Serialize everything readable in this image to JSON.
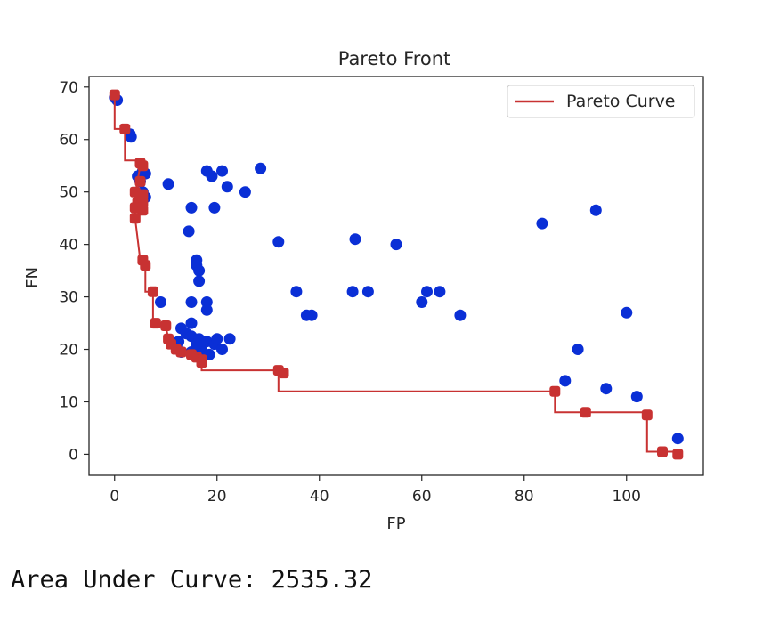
{
  "output": {
    "auc_text": "Area Under Curve: 2535.32"
  },
  "colors": {
    "scatter": "#0a2fd6",
    "pareto": "#c83232",
    "axes": "#262626"
  },
  "chart_data": {
    "type": "scatter",
    "title": "Pareto Front",
    "xlabel": "FP",
    "ylabel": "FN",
    "xlim": [
      -5,
      115
    ],
    "ylim": [
      -4,
      72
    ],
    "xticks": [
      0,
      20,
      40,
      60,
      80,
      100
    ],
    "yticks": [
      0,
      10,
      20,
      30,
      40,
      50,
      60,
      70
    ],
    "grid": false,
    "legend": {
      "placement": "top-right",
      "entries": [
        {
          "label": "Pareto Curve"
        }
      ]
    },
    "series": [
      {
        "kind": "scatter",
        "color": "#0a2fd6",
        "points": [
          [
            0,
            68
          ],
          [
            0.5,
            67.5
          ],
          [
            3,
            61
          ],
          [
            3.2,
            60.5
          ],
          [
            4.5,
            53
          ],
          [
            5,
            52
          ],
          [
            5.5,
            54
          ],
          [
            6,
            53.5
          ],
          [
            6,
            49
          ],
          [
            5.5,
            50
          ],
          [
            10.5,
            51.5
          ],
          [
            15,
            47
          ],
          [
            14.5,
            42.5
          ],
          [
            16,
            37
          ],
          [
            16,
            36
          ],
          [
            16.5,
            35
          ],
          [
            16.5,
            33
          ],
          [
            15,
            29
          ],
          [
            18,
            29
          ],
          [
            18,
            27.5
          ],
          [
            15,
            25
          ],
          [
            19.5,
            47
          ],
          [
            18,
            54
          ],
          [
            19,
            53
          ],
          [
            21,
            54
          ],
          [
            22,
            51
          ],
          [
            25.5,
            50
          ],
          [
            28.5,
            54.5
          ],
          [
            32,
            40.5
          ],
          [
            35.5,
            31
          ],
          [
            37.5,
            26.5
          ],
          [
            38.5,
            26.5
          ],
          [
            47,
            41
          ],
          [
            46.5,
            31
          ],
          [
            49.5,
            31
          ],
          [
            55,
            40
          ],
          [
            60,
            29
          ],
          [
            61,
            31
          ],
          [
            63.5,
            31
          ],
          [
            67.5,
            26.5
          ],
          [
            83.5,
            44
          ],
          [
            94,
            46.5
          ],
          [
            88,
            14
          ],
          [
            90.5,
            20
          ],
          [
            96,
            12.5
          ],
          [
            100,
            27
          ],
          [
            102,
            11
          ],
          [
            110,
            3
          ],
          [
            9,
            29
          ],
          [
            13,
            24
          ],
          [
            14,
            23
          ],
          [
            15,
            22.5
          ],
          [
            16.5,
            22
          ],
          [
            18,
            21.5
          ],
          [
            19.5,
            21
          ],
          [
            22.5,
            22
          ],
          [
            21,
            20
          ],
          [
            17,
            20
          ],
          [
            15,
            19.5
          ],
          [
            13,
            19.5
          ],
          [
            18.5,
            19
          ],
          [
            16,
            21
          ],
          [
            12.5,
            21.5
          ],
          [
            20,
            22
          ]
        ]
      },
      {
        "kind": "line",
        "name": "Pareto Curve",
        "color": "#c83232",
        "points": [
          [
            0,
            68.5
          ],
          [
            0,
            62
          ],
          [
            2,
            62
          ],
          [
            2,
            56
          ],
          [
            5,
            56
          ],
          [
            5,
            55
          ],
          [
            4,
            49.5
          ],
          [
            4,
            45
          ],
          [
            5,
            37
          ],
          [
            6,
            36
          ],
          [
            6,
            31
          ],
          [
            7.5,
            31
          ],
          [
            7.5,
            25
          ],
          [
            10,
            24.5
          ],
          [
            10.5,
            22
          ],
          [
            11,
            21
          ],
          [
            12,
            20
          ],
          [
            13,
            19.5
          ],
          [
            15,
            19
          ],
          [
            16,
            18.5
          ],
          [
            17,
            17.5
          ],
          [
            17,
            16
          ],
          [
            32,
            16
          ],
          [
            32,
            12
          ],
          [
            86,
            12
          ],
          [
            86,
            8
          ],
          [
            92,
            8
          ],
          [
            104,
            8
          ],
          [
            104,
            7.5
          ],
          [
            104,
            0.5
          ],
          [
            107,
            0.5
          ],
          [
            110,
            0.5
          ],
          [
            110,
            0
          ]
        ]
      },
      {
        "kind": "scatter",
        "color": "#c83232",
        "points": [
          [
            0,
            68.5
          ],
          [
            2,
            62
          ],
          [
            5,
            55.5
          ],
          [
            5.5,
            55
          ],
          [
            5,
            52
          ],
          [
            4,
            50
          ],
          [
            5.5,
            49.5
          ],
          [
            4.5,
            48
          ],
          [
            5.5,
            48
          ],
          [
            4,
            47
          ],
          [
            5.5,
            46.5
          ],
          [
            4,
            45
          ],
          [
            5.5,
            37
          ],
          [
            6,
            36
          ],
          [
            7.5,
            31
          ],
          [
            8,
            25
          ],
          [
            10,
            24.5
          ],
          [
            10.5,
            22
          ],
          [
            11,
            21
          ],
          [
            12,
            20
          ],
          [
            13,
            19.5
          ],
          [
            15,
            19
          ],
          [
            16,
            18.5
          ],
          [
            17,
            18
          ],
          [
            17,
            17.5
          ],
          [
            32,
            16
          ],
          [
            33,
            15.5
          ],
          [
            86,
            12
          ],
          [
            92,
            8
          ],
          [
            104,
            7.5
          ],
          [
            107,
            0.5
          ],
          [
            110,
            0
          ]
        ]
      }
    ]
  }
}
